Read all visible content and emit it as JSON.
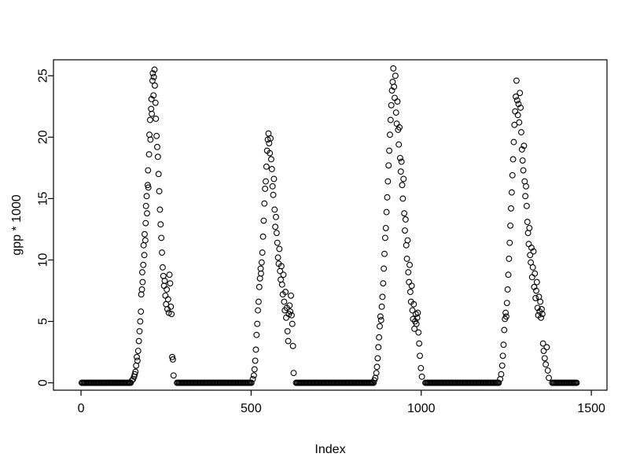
{
  "figure": {
    "background": "#ffffff",
    "point_color": "#000000"
  },
  "chart_data": {
    "type": "scatter",
    "title": "",
    "xlabel": "Index",
    "ylabel": "gpp * 1000",
    "legend": "none",
    "grid": false,
    "x_ticks": [
      0,
      500,
      1000,
      1500
    ],
    "y_ticks": [
      0,
      5,
      10,
      15,
      20,
      25
    ],
    "xlim": [
      -81,
      1546
    ],
    "ylim": [
      -0.6,
      26.3
    ],
    "marker": {
      "shape": "circle-open",
      "radius": 3.4,
      "color": "#000000"
    },
    "zero_runs": [
      [
        2,
        148,
        3
      ],
      [
        282,
        502,
        3
      ],
      [
        632,
        862,
        3
      ],
      [
        1012,
        1230,
        3
      ],
      [
        1385,
        1458,
        3
      ]
    ],
    "points": [
      [
        150,
        0.2
      ],
      [
        153,
        0.3
      ],
      [
        156,
        0.5
      ],
      [
        158,
        0.7
      ],
      [
        160,
        0.9
      ],
      [
        162,
        1.4
      ],
      [
        164,
        2.1
      ],
      [
        166,
        1.8
      ],
      [
        168,
        2.6
      ],
      [
        170,
        3.4
      ],
      [
        172,
        4.2
      ],
      [
        174,
        5.0
      ],
      [
        176,
        5.8
      ],
      [
        177,
        7.2
      ],
      [
        179,
        7.6
      ],
      [
        180,
        9.0
      ],
      [
        181,
        8.2
      ],
      [
        183,
        9.6
      ],
      [
        184,
        11.2
      ],
      [
        186,
        10.4
      ],
      [
        187,
        12.1
      ],
      [
        189,
        11.6
      ],
      [
        190,
        13.0
      ],
      [
        191,
        14.4
      ],
      [
        193,
        15.2
      ],
      [
        194,
        13.8
      ],
      [
        196,
        16.1
      ],
      [
        197,
        17.3
      ],
      [
        198,
        15.9
      ],
      [
        200,
        18.6
      ],
      [
        201,
        20.2
      ],
      [
        203,
        21.4
      ],
      [
        204,
        19.8
      ],
      [
        206,
        22.3
      ],
      [
        207,
        23.1
      ],
      [
        208,
        21.9
      ],
      [
        210,
        24.6
      ],
      [
        211,
        25.2
      ],
      [
        213,
        23.4
      ],
      [
        214,
        24.9
      ],
      [
        216,
        25.5
      ],
      [
        217,
        24.2
      ],
      [
        219,
        22.8
      ],
      [
        220,
        21.5
      ],
      [
        222,
        20.1
      ],
      [
        224,
        19.2
      ],
      [
        226,
        18.4
      ],
      [
        228,
        17.0
      ],
      [
        230,
        15.6
      ],
      [
        232,
        14.1
      ],
      [
        234,
        12.9
      ],
      [
        236,
        11.8
      ],
      [
        238,
        10.6
      ],
      [
        240,
        9.4
      ],
      [
        242,
        8.7
      ],
      [
        244,
        7.9
      ],
      [
        246,
        8.3
      ],
      [
        248,
        7.1
      ],
      [
        250,
        6.4
      ],
      [
        252,
        7.6
      ],
      [
        254,
        6.0
      ],
      [
        256,
        6.8
      ],
      [
        258,
        5.7
      ],
      [
        260,
        8.8
      ],
      [
        262,
        8.1
      ],
      [
        264,
        6.2
      ],
      [
        266,
        5.6
      ],
      [
        268,
        2.1
      ],
      [
        270,
        1.9
      ],
      [
        272,
        0.6
      ],
      [
        505,
        0.3
      ],
      [
        508,
        0.6
      ],
      [
        510,
        1.1
      ],
      [
        512,
        1.8
      ],
      [
        514,
        2.7
      ],
      [
        516,
        3.9
      ],
      [
        518,
        4.8
      ],
      [
        520,
        5.9
      ],
      [
        522,
        6.6
      ],
      [
        524,
        7.8
      ],
      [
        526,
        8.5
      ],
      [
        528,
        9.3
      ],
      [
        529,
        8.9
      ],
      [
        531,
        9.8
      ],
      [
        533,
        10.6
      ],
      [
        535,
        11.9
      ],
      [
        537,
        13.2
      ],
      [
        539,
        14.6
      ],
      [
        541,
        15.8
      ],
      [
        543,
        16.4
      ],
      [
        545,
        17.6
      ],
      [
        547,
        18.9
      ],
      [
        549,
        19.8
      ],
      [
        551,
        20.3
      ],
      [
        553,
        19.5
      ],
      [
        555,
        18.7
      ],
      [
        557,
        19.9
      ],
      [
        559,
        18.2
      ],
      [
        561,
        17.4
      ],
      [
        563,
        16.0
      ],
      [
        565,
        15.3
      ],
      [
        567,
        16.6
      ],
      [
        569,
        14.1
      ],
      [
        571,
        12.7
      ],
      [
        573,
        13.5
      ],
      [
        575,
        12.2
      ],
      [
        577,
        11.4
      ],
      [
        579,
        10.2
      ],
      [
        581,
        9.7
      ],
      [
        583,
        10.9
      ],
      [
        585,
        9.1
      ],
      [
        587,
        8.4
      ],
      [
        589,
        9.5
      ],
      [
        591,
        8.0
      ],
      [
        593,
        7.2
      ],
      [
        595,
        8.8
      ],
      [
        597,
        6.6
      ],
      [
        599,
        5.9
      ],
      [
        601,
        7.4
      ],
      [
        603,
        5.3
      ],
      [
        605,
        6.1
      ],
      [
        607,
        4.2
      ],
      [
        609,
        3.4
      ],
      [
        611,
        5.6
      ],
      [
        613,
        6.3
      ],
      [
        615,
        5.8
      ],
      [
        617,
        7.1
      ],
      [
        619,
        5.5
      ],
      [
        621,
        4.8
      ],
      [
        623,
        3.0
      ],
      [
        625,
        0.8
      ],
      [
        862,
        0.2
      ],
      [
        865,
        0.4
      ],
      [
        868,
        0.8
      ],
      [
        870,
        1.3
      ],
      [
        872,
        2.0
      ],
      [
        874,
        2.9
      ],
      [
        876,
        3.7
      ],
      [
        878,
        4.6
      ],
      [
        880,
        5.4
      ],
      [
        882,
        5.1
      ],
      [
        884,
        6.2
      ],
      [
        886,
        7.0
      ],
      [
        888,
        8.1
      ],
      [
        890,
        9.3
      ],
      [
        892,
        10.5
      ],
      [
        894,
        11.8
      ],
      [
        896,
        12.6
      ],
      [
        898,
        13.9
      ],
      [
        900,
        15.1
      ],
      [
        902,
        16.4
      ],
      [
        904,
        17.7
      ],
      [
        906,
        18.9
      ],
      [
        908,
        20.2
      ],
      [
        910,
        21.4
      ],
      [
        912,
        22.6
      ],
      [
        914,
        23.8
      ],
      [
        916,
        24.5
      ],
      [
        918,
        25.6
      ],
      [
        920,
        24.1
      ],
      [
        922,
        23.2
      ],
      [
        924,
        25.0
      ],
      [
        926,
        22.0
      ],
      [
        928,
        21.1
      ],
      [
        930,
        22.9
      ],
      [
        932,
        20.6
      ],
      [
        934,
        19.4
      ],
      [
        936,
        20.8
      ],
      [
        938,
        18.3
      ],
      [
        940,
        17.2
      ],
      [
        942,
        18.0
      ],
      [
        944,
        16.1
      ],
      [
        946,
        15.0
      ],
      [
        948,
        16.6
      ],
      [
        950,
        13.8
      ],
      [
        952,
        12.4
      ],
      [
        954,
        13.3
      ],
      [
        956,
        11.2
      ],
      [
        958,
        10.1
      ],
      [
        960,
        11.6
      ],
      [
        962,
        9.0
      ],
      [
        964,
        8.2
      ],
      [
        966,
        9.6
      ],
      [
        968,
        7.4
      ],
      [
        970,
        6.6
      ],
      [
        972,
        7.9
      ],
      [
        974,
        5.9
      ],
      [
        976,
        5.2
      ],
      [
        978,
        6.4
      ],
      [
        980,
        4.4
      ],
      [
        982,
        5.0
      ],
      [
        984,
        5.6
      ],
      [
        986,
        4.8
      ],
      [
        988,
        5.3
      ],
      [
        990,
        5.7
      ],
      [
        992,
        4.1
      ],
      [
        994,
        3.2
      ],
      [
        996,
        2.2
      ],
      [
        999,
        1.2
      ],
      [
        1002,
        0.5
      ],
      [
        1232,
        0.3
      ],
      [
        1235,
        0.7
      ],
      [
        1238,
        1.4
      ],
      [
        1240,
        2.2
      ],
      [
        1242,
        3.1
      ],
      [
        1244,
        4.3
      ],
      [
        1246,
        5.2
      ],
      [
        1248,
        5.7
      ],
      [
        1250,
        5.4
      ],
      [
        1252,
        6.5
      ],
      [
        1254,
        7.6
      ],
      [
        1256,
        8.8
      ],
      [
        1258,
        10.1
      ],
      [
        1260,
        11.4
      ],
      [
        1262,
        12.8
      ],
      [
        1264,
        14.2
      ],
      [
        1266,
        15.5
      ],
      [
        1268,
        16.9
      ],
      [
        1270,
        18.2
      ],
      [
        1272,
        19.6
      ],
      [
        1274,
        21.0
      ],
      [
        1276,
        22.1
      ],
      [
        1278,
        23.3
      ],
      [
        1280,
        24.6
      ],
      [
        1282,
        23.0
      ],
      [
        1284,
        21.8
      ],
      [
        1286,
        22.7
      ],
      [
        1288,
        21.2
      ],
      [
        1290,
        23.6
      ],
      [
        1292,
        22.4
      ],
      [
        1294,
        20.4
      ],
      [
        1296,
        19.0
      ],
      [
        1298,
        18.1
      ],
      [
        1300,
        17.3
      ],
      [
        1302,
        19.3
      ],
      [
        1304,
        16.4
      ],
      [
        1306,
        15.2
      ],
      [
        1308,
        16.0
      ],
      [
        1310,
        14.4
      ],
      [
        1312,
        13.1
      ],
      [
        1314,
        12.2
      ],
      [
        1316,
        11.3
      ],
      [
        1318,
        12.6
      ],
      [
        1320,
        10.4
      ],
      [
        1322,
        9.8
      ],
      [
        1324,
        11.0
      ],
      [
        1326,
        8.6
      ],
      [
        1328,
        9.4
      ],
      [
        1330,
        10.7
      ],
      [
        1332,
        7.8
      ],
      [
        1334,
        8.9
      ],
      [
        1336,
        6.9
      ],
      [
        1338,
        7.5
      ],
      [
        1340,
        8.2
      ],
      [
        1342,
        6.1
      ],
      [
        1344,
        5.5
      ],
      [
        1346,
        7.0
      ],
      [
        1348,
        5.8
      ],
      [
        1350,
        6.6
      ],
      [
        1352,
        5.3
      ],
      [
        1354,
        6.0
      ],
      [
        1356,
        5.6
      ],
      [
        1358,
        3.2
      ],
      [
        1360,
        2.6
      ],
      [
        1363,
        2.0
      ],
      [
        1366,
        1.5
      ],
      [
        1369,
        2.9
      ],
      [
        1372,
        1.0
      ],
      [
        1375,
        0.4
      ]
    ]
  }
}
